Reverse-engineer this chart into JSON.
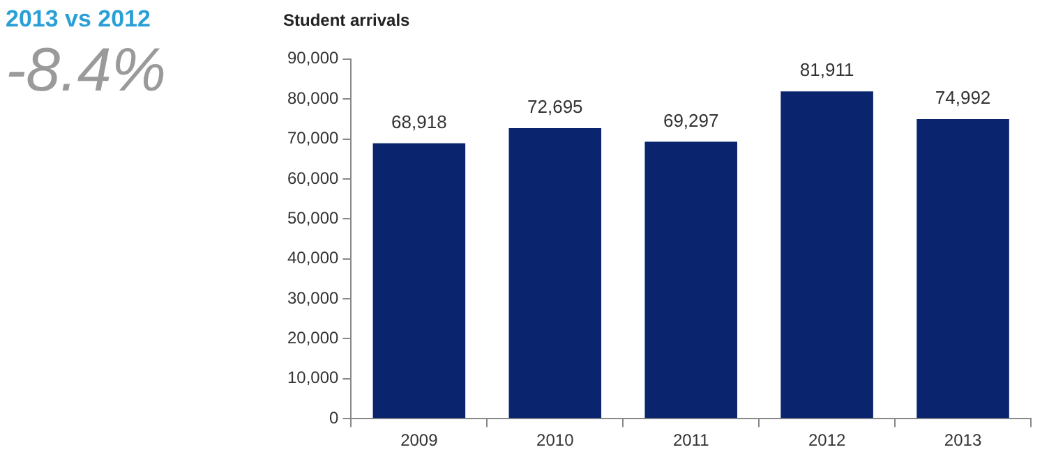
{
  "chart_data": {
    "type": "bar",
    "title": "Student arrivals",
    "annotations": [
      "2013 vs 2012",
      "-8.4%"
    ],
    "categories": [
      "2009",
      "2010",
      "2011",
      "2012",
      "2013"
    ],
    "values": [
      68918,
      72695,
      69297,
      81911,
      74992
    ],
    "value_labels": [
      "68,918",
      "72,695",
      "69,297",
      "81,911",
      "74,992"
    ],
    "color": "#0a246e",
    "ylim": [
      0,
      90000
    ],
    "yticks": [
      0,
      {
        "value": 10000,
        "label": "10,000"
      },
      {
        "value": 20000,
        "label": "20,000"
      },
      {
        "value": 30000,
        "label": "30,000"
      },
      {
        "value": 40000,
        "label": "40,000"
      },
      {
        "value": 50000,
        "label": "50,000"
      },
      {
        "value": 60000,
        "label": "60,000"
      },
      {
        "value": 70000,
        "label": "70,000"
      },
      {
        "value": 80000,
        "label": "80,000"
      },
      {
        "value": 90000,
        "label": "90,000"
      }
    ]
  }
}
